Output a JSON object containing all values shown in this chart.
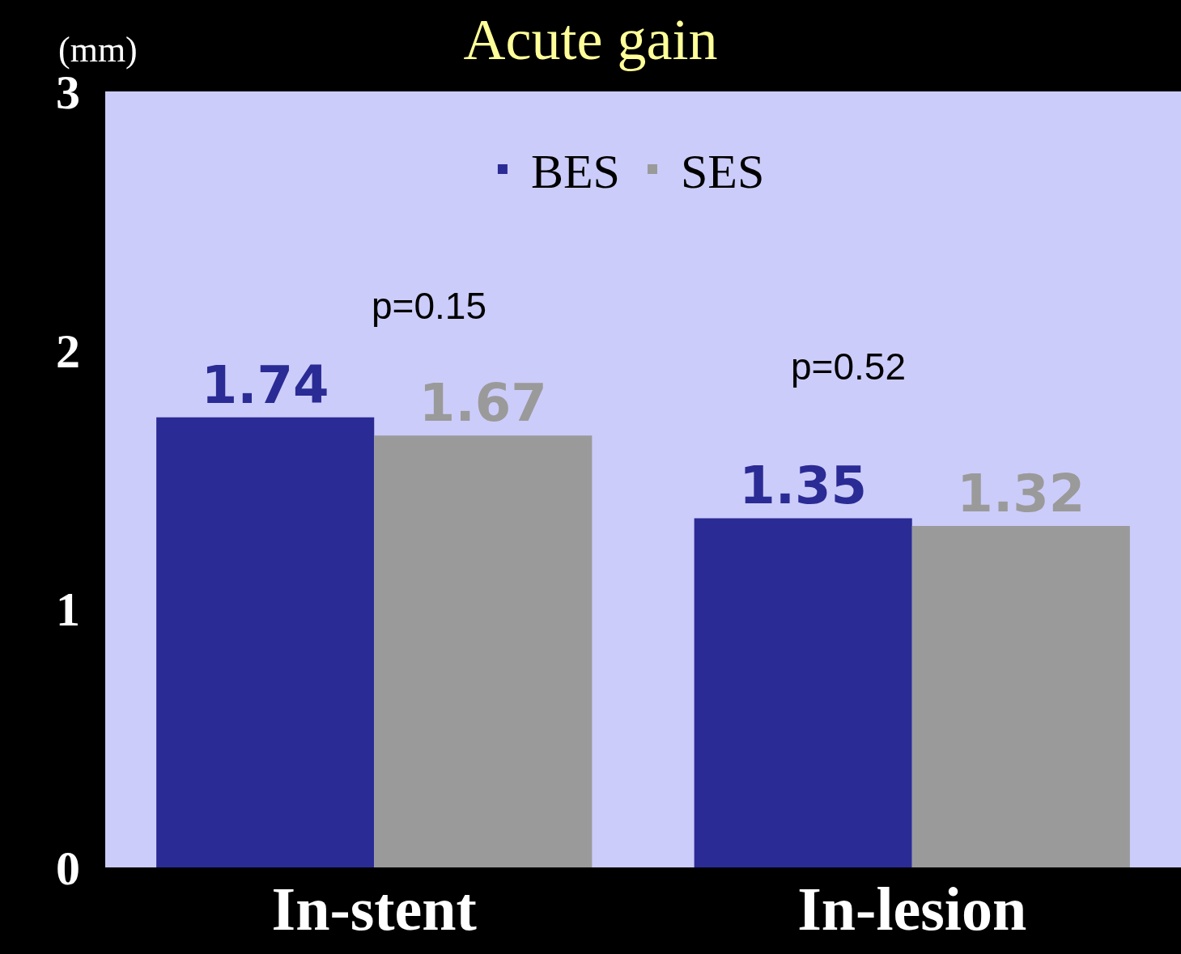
{
  "chart_data": {
    "type": "bar",
    "title": "Acute gain",
    "ylabel": "(mm)",
    "categories": [
      "In-stent",
      "In-lesion"
    ],
    "series": [
      {
        "name": "BES",
        "color": "#2b2b95",
        "values": [
          1.74,
          1.35
        ]
      },
      {
        "name": "SES",
        "color": "#9a9a9a",
        "values": [
          1.67,
          1.32
        ]
      }
    ],
    "ylim": [
      0,
      3
    ],
    "yticks": [
      0,
      1,
      2,
      3
    ],
    "data_labels": true,
    "grid": false,
    "legend": "top",
    "annotations": [
      "p=0.15",
      "p=0.52"
    ]
  }
}
